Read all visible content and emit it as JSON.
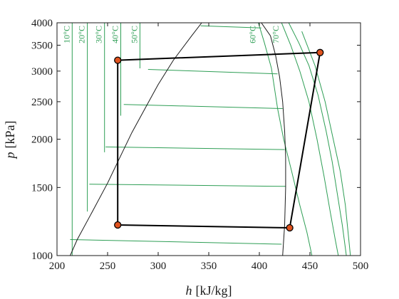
{
  "chart_data": {
    "type": "line",
    "title": "",
    "xlabel": {
      "symbol": "h",
      "unit": "[kJ/kg]"
    },
    "ylabel": {
      "symbol": "p",
      "unit": "[kPa]"
    },
    "xlim": [
      200,
      500
    ],
    "ylim": [
      1000,
      4000
    ],
    "yscale": "log",
    "xticks": [
      200,
      250,
      300,
      350,
      400,
      450,
      500
    ],
    "yticks": [
      1000,
      1500,
      2000,
      2500,
      3000,
      3500,
      4000
    ],
    "grid": false,
    "colors": {
      "isotherm": "#2e9e55",
      "dome": "#1a1a1a",
      "cycle": "#000000",
      "marker_fill": "#e0531f",
      "marker_edge": "#000000"
    },
    "saturation_dome": {
      "liquid": [
        [
          213,
          1000
        ],
        [
          220,
          1100
        ],
        [
          235,
          1300
        ],
        [
          250,
          1540
        ],
        [
          262,
          1790
        ],
        [
          274,
          2080
        ],
        [
          287,
          2400
        ],
        [
          300,
          2770
        ],
        [
          315,
          3200
        ],
        [
          333,
          3700
        ],
        [
          343,
          4000
        ]
      ],
      "vapor": [
        [
          423,
          1000
        ],
        [
          425,
          1200
        ],
        [
          426,
          1500
        ],
        [
          426,
          1800
        ],
        [
          425,
          2100
        ],
        [
          423,
          2500
        ],
        [
          420,
          2900
        ],
        [
          416,
          3300
        ],
        [
          411,
          3700
        ],
        [
          402,
          4000
        ]
      ]
    },
    "isotherms": [
      {
        "label": "10°C",
        "points": [
          [
            215,
            4000
          ],
          [
            215,
            1000
          ]
        ]
      },
      {
        "label": "20°C",
        "points": [
          [
            230,
            4000
          ],
          [
            230,
            1300
          ]
        ]
      },
      {
        "label": "30°C",
        "points": [
          [
            247,
            4000
          ],
          [
            247,
            1850
          ]
        ]
      },
      {
        "label": "40°C",
        "points": [
          [
            263,
            4000
          ],
          [
            263,
            2300
          ]
        ]
      },
      {
        "label": "50°C",
        "points": [
          [
            282,
            4000
          ],
          [
            282,
            3050
          ]
        ]
      },
      {
        "label": "60°C",
        "points": [
          [
            399,
            4000
          ],
          [
            405,
            3550
          ],
          [
            412,
            3050
          ],
          [
            418,
            2400
          ],
          [
            424,
            2000
          ],
          [
            432,
            1650
          ],
          [
            440,
            1350
          ],
          [
            447,
            1150
          ],
          [
            452,
            1000
          ]
        ]
      },
      {
        "label": "70°C",
        "points": [
          [
            422,
            4000
          ],
          [
            431,
            3500
          ],
          [
            440,
            3000
          ],
          [
            449,
            2500
          ],
          [
            457,
            2000
          ],
          [
            464,
            1600
          ],
          [
            470,
            1300
          ],
          [
            475,
            1100
          ],
          [
            478,
            1000
          ]
        ]
      },
      {
        "label": "",
        "points": [
          [
            429,
            4000
          ],
          [
            439,
            3550
          ],
          [
            449,
            3100
          ],
          [
            458,
            2600
          ],
          [
            466,
            2100
          ],
          [
            472,
            1750
          ],
          [
            477,
            1450
          ],
          [
            482,
            1200
          ],
          [
            486,
            1000
          ]
        ]
      },
      {
        "label": "",
        "points": [
          [
            442,
            3800
          ],
          [
            455,
            3100
          ],
          [
            465,
            2500
          ],
          [
            473,
            2000
          ],
          [
            480,
            1650
          ],
          [
            485,
            1350
          ],
          [
            490,
            1000
          ]
        ]
      }
    ],
    "isobars": [
      {
        "points": [
          [
            213,
            1100
          ],
          [
            422,
            1070
          ]
        ]
      },
      {
        "points": [
          [
            232,
            1530
          ],
          [
            426,
            1510
          ]
        ]
      },
      {
        "points": [
          [
            248,
            1910
          ],
          [
            425,
            1880
          ]
        ]
      },
      {
        "points": [
          [
            266,
            2460
          ],
          [
            423,
            2400
          ]
        ]
      },
      {
        "points": [
          [
            290,
            3030
          ],
          [
            418,
            2950
          ]
        ]
      },
      {
        "points": [
          [
            342,
            3930
          ],
          [
            402,
            3880
          ]
        ]
      }
    ],
    "series": [
      {
        "type": "cycle",
        "points": [
          [
            260,
            3200
          ],
          [
            460,
            3350
          ],
          [
            430,
            1180
          ],
          [
            260,
            1200
          ],
          [
            260,
            3200
          ]
        ]
      }
    ]
  }
}
